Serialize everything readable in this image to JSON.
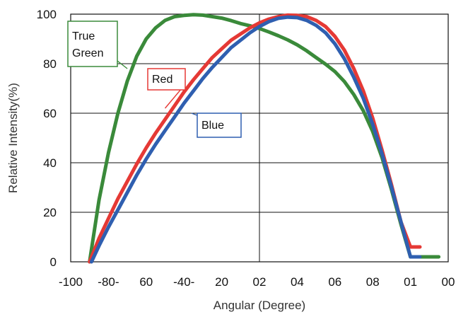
{
  "chart_data": {
    "type": "line",
    "xlabel": "Angular (Degree)",
    "ylabel": "Relative Intensity(%)",
    "xlim": [
      -100,
      100
    ],
    "ylim": [
      0,
      100
    ],
    "x_tick_labels": [
      "-100",
      "-80-",
      "60",
      "-40-",
      "20",
      "02",
      "04",
      "06",
      "08",
      "01",
      "00"
    ],
    "y_tick_labels": [
      "0",
      "20",
      "40",
      "60",
      "80",
      "100"
    ],
    "grid": true,
    "series": [
      {
        "name": "True Green",
        "color": "#3a8a3a",
        "label_lines": [
          "True",
          "Green"
        ],
        "x": [
          -90,
          -85,
          -80,
          -75,
          -70,
          -65,
          -60,
          -55,
          -50,
          -45,
          -40,
          -35,
          -30,
          -25,
          -20,
          -15,
          -10,
          -5,
          0,
          5,
          10,
          15,
          20,
          25,
          30,
          35,
          40,
          45,
          50,
          55,
          60,
          65,
          70,
          75,
          80,
          85,
          90,
          95
        ],
        "y": [
          0,
          25,
          44,
          60,
          73,
          83,
          90,
          94.5,
          97.5,
          99,
          99.5,
          99.8,
          99.6,
          99,
          98.4,
          97.4,
          96.2,
          95.3,
          94.2,
          92.8,
          91.3,
          89.6,
          87.6,
          85.2,
          82.5,
          79.8,
          76.8,
          72.8,
          67.5,
          61,
          52.6,
          42,
          29,
          15,
          2,
          2,
          2,
          2
        ]
      },
      {
        "name": "Red",
        "color": "#e53935",
        "label_lines": [
          "Red"
        ],
        "x": [
          -90,
          -85,
          -80,
          -75,
          -70,
          -65,
          -60,
          -55,
          -50,
          -45,
          -40,
          -35,
          -30,
          -25,
          -20,
          -15,
          -10,
          -5,
          0,
          5,
          10,
          15,
          20,
          25,
          30,
          35,
          40,
          45,
          50,
          55,
          60,
          65,
          70,
          75,
          80,
          85
        ],
        "y": [
          0,
          9.5,
          17.5,
          25.5,
          32.5,
          39.5,
          46,
          52,
          57.5,
          63,
          68.5,
          73.5,
          78,
          82.5,
          86,
          89.5,
          92,
          94.5,
          96.5,
          98,
          99,
          99.6,
          99.5,
          99,
          97.5,
          95,
          91,
          85.5,
          78,
          69,
          58,
          45,
          31,
          16,
          6,
          6
        ]
      },
      {
        "name": "Blue",
        "color": "#2f5fb0",
        "label_lines": [
          "Blue"
        ],
        "x": [
          -89,
          -85,
          -80,
          -75,
          -70,
          -65,
          -60,
          -55,
          -50,
          -45,
          -40,
          -35,
          -30,
          -25,
          -20,
          -15,
          -10,
          -5,
          0,
          5,
          10,
          15,
          20,
          25,
          30,
          35,
          40,
          45,
          50,
          55,
          60,
          65,
          70,
          75,
          80,
          85
        ],
        "y": [
          0,
          6.5,
          14,
          21,
          28,
          35,
          41.5,
          47.5,
          53,
          58.5,
          64,
          69,
          74,
          78.5,
          82.5,
          86.5,
          89.5,
          92.5,
          95,
          97,
          98.3,
          98.8,
          98.6,
          97.5,
          95.5,
          92.5,
          88,
          82,
          74.5,
          66,
          55.5,
          43.5,
          30,
          16,
          2,
          2
        ]
      }
    ]
  }
}
